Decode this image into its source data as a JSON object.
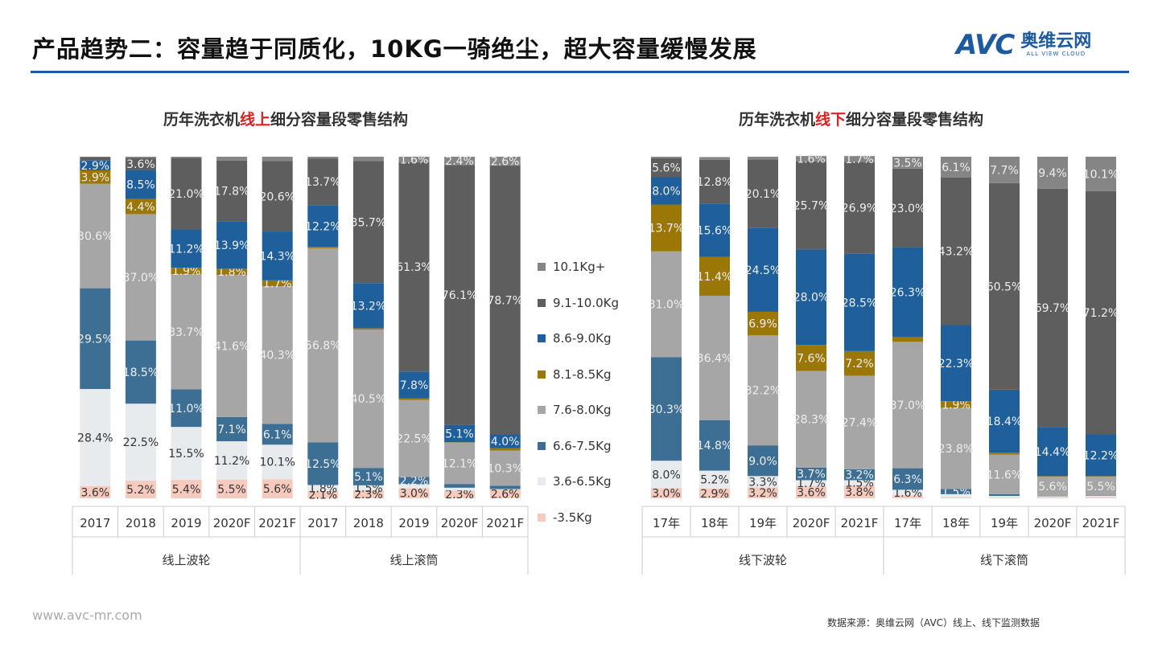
{
  "header": {
    "title": "产品趋势二：容量趋于同质化，10KG一骑绝尘，超大容量缓慢发展",
    "logo": {
      "brand": "AVC",
      "cn": "奥维云网",
      "en": "ALL VIEW CLOUD"
    }
  },
  "footer": {
    "url": "www.avc-mr.com",
    "source": "数据来源：奥维云网（AVC）线上、线下监测数据"
  },
  "colors": {
    "10.1Kg+": "#858585",
    "9.1-10.0Kg": "#5e5e5e",
    "8.6-9.0Kg": "#1f5f9c",
    "8.1-8.5Kg": "#9b7708",
    "7.6-8.0Kg": "#a6a6a6",
    "6.6-7.5Kg": "#3d6f94",
    "3.6-6.5Kg": "#e7ebee",
    "-3.5Kg": "#f6cbbd"
  },
  "legend": [
    "10.1Kg+",
    "9.1-10.0Kg",
    "8.6-9.0Kg",
    "8.1-8.5Kg",
    "7.6-8.0Kg",
    "6.6-7.5Kg",
    "3.6-6.5Kg",
    "-3.5Kg"
  ],
  "chart_data": [
    {
      "type": "bar",
      "stacked": true,
      "percent": true,
      "title_pre": "历年洗衣机",
      "title_hl": "线上",
      "title_post": "细分容量段零售结构",
      "series_order": [
        "-3.5Kg",
        "3.6-6.5Kg",
        "6.6-7.5Kg",
        "7.6-8.0Kg",
        "8.1-8.5Kg",
        "8.6-9.0Kg",
        "9.1-10.0Kg",
        "10.1Kg+"
      ],
      "groups": [
        {
          "label": "线上波轮",
          "categories": [
            "2017",
            "2018",
            "2019",
            "2020F",
            "2021F"
          ]
        },
        {
          "label": "线上滚筒",
          "categories": [
            "2017",
            "2018",
            "2019",
            "2020F",
            "2021F"
          ]
        }
      ],
      "values": [
        [
          3.6,
          28.4,
          29.5,
          30.6,
          3.9,
          2.9,
          1.0,
          0.1
        ],
        [
          5.2,
          22.5,
          18.5,
          37.0,
          4.4,
          8.5,
          3.6,
          0.3
        ],
        [
          5.4,
          15.5,
          11.0,
          33.7,
          1.9,
          11.2,
          21.0,
          0.3
        ],
        [
          5.5,
          11.2,
          7.1,
          41.6,
          1.8,
          13.9,
          17.8,
          1.1
        ],
        [
          5.6,
          10.1,
          6.1,
          40.3,
          1.7,
          14.3,
          20.6,
          1.3
        ],
        [
          2.1,
          1.8,
          12.5,
          56.8,
          0.4,
          12.2,
          13.7,
          0.5
        ],
        [
          2.3,
          1.5,
          5.1,
          40.5,
          0.4,
          13.2,
          35.7,
          1.3
        ],
        [
          3.0,
          1.1,
          2.2,
          22.5,
          0.5,
          7.8,
          61.3,
          1.6
        ],
        [
          2.3,
          0.8,
          1.1,
          12.1,
          0.1,
          5.1,
          76.1,
          2.4
        ],
        [
          2.6,
          0.1,
          1.0,
          10.3,
          0.7,
          4.0,
          78.7,
          2.6
        ]
      ],
      "ylim": [
        0,
        100
      ]
    },
    {
      "type": "bar",
      "stacked": true,
      "percent": true,
      "title_pre": "历年洗衣机",
      "title_hl": "线下",
      "title_post": "细分容量段零售结构",
      "series_order": [
        "-3.5Kg",
        "3.6-6.5Kg",
        "6.6-7.5Kg",
        "7.6-8.0Kg",
        "8.1-8.5Kg",
        "8.6-9.0Kg",
        "9.1-10.0Kg",
        "10.1Kg+"
      ],
      "groups": [
        {
          "label": "线下波轮",
          "categories": [
            "17年",
            "18年",
            "19年",
            "2020F",
            "2021F"
          ]
        },
        {
          "label": "线下滚筒",
          "categories": [
            "17年",
            "18年",
            "19年",
            "2020F",
            "2021F"
          ]
        }
      ],
      "values": [
        [
          3.0,
          8.0,
          30.3,
          31.0,
          13.7,
          8.0,
          5.6,
          0.4
        ],
        [
          2.9,
          5.2,
          14.8,
          36.4,
          11.4,
          15.6,
          12.8,
          0.8
        ],
        [
          3.2,
          3.3,
          9.0,
          32.2,
          6.9,
          24.5,
          20.1,
          0.8
        ],
        [
          3.6,
          1.7,
          3.7,
          28.3,
          7.6,
          28.0,
          25.7,
          1.6
        ],
        [
          3.8,
          1.5,
          3.2,
          27.4,
          7.2,
          28.5,
          26.9,
          1.7
        ],
        [
          0.9,
          1.6,
          6.3,
          37.0,
          1.4,
          26.3,
          23.0,
          3.5
        ],
        [
          0.3,
          0.9,
          1.5,
          23.8,
          1.9,
          22.3,
          43.2,
          6.1
        ],
        [
          0.2,
          0.5,
          0.5,
          11.6,
          0.6,
          18.4,
          60.5,
          7.7
        ],
        [
          0.3,
          0.3,
          0.1,
          5.6,
          0.2,
          14.4,
          69.7,
          9.4
        ],
        [
          0.4,
          0.3,
          0.1,
          5.5,
          0.2,
          12.2,
          71.2,
          10.1
        ]
      ],
      "ylim": [
        0,
        100
      ]
    }
  ]
}
